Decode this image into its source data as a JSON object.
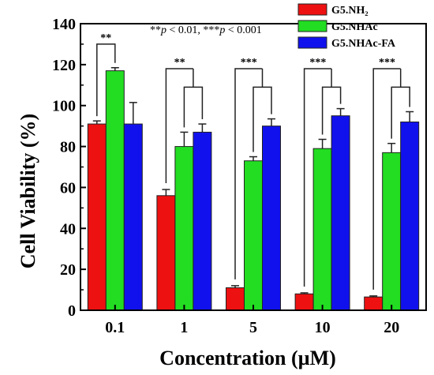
{
  "chart_data": {
    "type": "bar",
    "title": "",
    "xlabel": "Concentration (µM)",
    "ylabel": "Cell Viability (%)",
    "ylim": [
      0,
      140
    ],
    "yticks": [
      0,
      20,
      40,
      60,
      80,
      100,
      120,
      140
    ],
    "categories": [
      "0.1",
      "1",
      "5",
      "10",
      "20"
    ],
    "series": [
      {
        "name": "G5.NH₂",
        "color": "#ee1111",
        "values": [
          91,
          56,
          11,
          8,
          6.5
        ],
        "errors": [
          1.5,
          3,
          1,
          0.5,
          0.5
        ]
      },
      {
        "name": "G5.NHAc",
        "color": "#22dd22",
        "values": [
          117,
          80,
          73,
          79,
          77
        ],
        "errors": [
          1.5,
          7,
          2,
          4.5,
          4.5
        ]
      },
      {
        "name": "G5.NHAc-FA",
        "color": "#1111ee",
        "values": [
          91,
          87,
          90,
          95,
          92
        ],
        "errors": [
          10.5,
          4,
          3.5,
          3.5,
          5
        ]
      }
    ],
    "legend_position": "top-right",
    "grid": false,
    "annotation": {
      "parts": [
        "**",
        "p",
        " < 0.01, ***",
        "p",
        " < 0.001"
      ]
    },
    "significance": [
      {
        "category": "0.1",
        "mark": "**",
        "groups": [
          0,
          1
        ]
      },
      {
        "category": "1",
        "mark": "**",
        "groups": [
          0,
          [
            1,
            2
          ]
        ]
      },
      {
        "category": "5",
        "mark": "***",
        "groups": [
          0,
          [
            1,
            2
          ]
        ]
      },
      {
        "category": "10",
        "mark": "***",
        "groups": [
          0,
          [
            1,
            2
          ]
        ]
      },
      {
        "category": "20",
        "mark": "***",
        "groups": [
          0,
          [
            1,
            2
          ]
        ]
      }
    ]
  }
}
